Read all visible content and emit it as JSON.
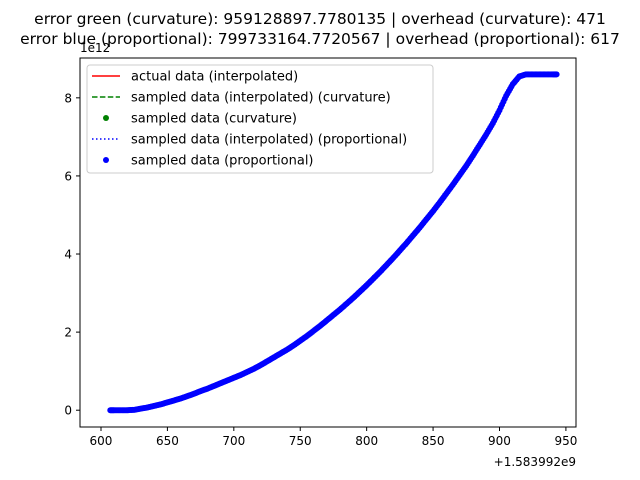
{
  "chart_data": {
    "type": "scatter",
    "title_lines": [
      "error green (curvature): 959128897.7780135 | overhead (curvature): 471",
      "error blue (proportional): 799733164.7720567 | overhead (proportional): 617"
    ],
    "xlabel": "",
    "ylabel": "",
    "x_offset_label": "+1.583992e9",
    "y_scale_label": "1e12",
    "xlim": [
      584.2,
      957.6
    ],
    "ylim": [
      -0.43,
      9.02
    ],
    "x_ticks": [
      600,
      650,
      700,
      750,
      800,
      850,
      900,
      950
    ],
    "x_tick_labels": [
      "600",
      "650",
      "700",
      "750",
      "800",
      "850",
      "900",
      "950"
    ],
    "y_ticks": [
      0,
      2,
      4,
      6,
      8
    ],
    "y_tick_labels": [
      "0",
      "2",
      "4",
      "6",
      "8"
    ],
    "grid": false,
    "legend_position": "top-left",
    "legend": [
      {
        "label": "actual data (interpolated)",
        "marker": "solid-line",
        "color": "#ff0000"
      },
      {
        "label": "sampled data (interpolated) (curvature)",
        "marker": "dashed-line",
        "color": "#008000"
      },
      {
        "label": "sampled data (curvature)",
        "marker": "dot",
        "color": "#008000"
      },
      {
        "label": "sampled data (interpolated) (proportional)",
        "marker": "dotted-line",
        "color": "#0000ff"
      },
      {
        "label": "sampled data (proportional)",
        "marker": "dot",
        "color": "#0000ff"
      }
    ],
    "series": [
      {
        "name": "sampled data (proportional)",
        "color": "#0000ff",
        "points": [
          [
            607,
            0.0
          ],
          [
            610,
            0.0
          ],
          [
            615,
            0.0
          ],
          [
            620,
            0.0
          ],
          [
            625,
            0.01
          ],
          [
            630,
            0.04
          ],
          [
            635,
            0.07
          ],
          [
            640,
            0.11
          ],
          [
            645,
            0.15
          ],
          [
            650,
            0.2
          ],
          [
            655,
            0.25
          ],
          [
            660,
            0.3
          ],
          [
            665,
            0.36
          ],
          [
            670,
            0.42
          ],
          [
            675,
            0.49
          ],
          [
            680,
            0.55
          ],
          [
            685,
            0.62
          ],
          [
            690,
            0.69
          ],
          [
            695,
            0.76
          ],
          [
            700,
            0.83
          ],
          [
            705,
            0.9
          ],
          [
            710,
            0.98
          ],
          [
            715,
            1.06
          ],
          [
            720,
            1.15
          ],
          [
            725,
            1.25
          ],
          [
            730,
            1.35
          ],
          [
            735,
            1.45
          ],
          [
            740,
            1.55
          ],
          [
            745,
            1.66
          ],
          [
            750,
            1.78
          ],
          [
            755,
            1.9
          ],
          [
            760,
            2.03
          ],
          [
            765,
            2.16
          ],
          [
            770,
            2.3
          ],
          [
            775,
            2.44
          ],
          [
            780,
            2.58
          ],
          [
            785,
            2.73
          ],
          [
            790,
            2.88
          ],
          [
            795,
            3.04
          ],
          [
            800,
            3.2
          ],
          [
            805,
            3.37
          ],
          [
            810,
            3.54
          ],
          [
            815,
            3.72
          ],
          [
            820,
            3.9
          ],
          [
            825,
            4.09
          ],
          [
            830,
            4.28
          ],
          [
            835,
            4.48
          ],
          [
            840,
            4.68
          ],
          [
            845,
            4.89
          ],
          [
            850,
            5.1
          ],
          [
            855,
            5.32
          ],
          [
            860,
            5.55
          ],
          [
            865,
            5.78
          ],
          [
            870,
            6.02
          ],
          [
            875,
            6.26
          ],
          [
            880,
            6.52
          ],
          [
            885,
            6.79
          ],
          [
            890,
            7.06
          ],
          [
            895,
            7.35
          ],
          [
            900,
            7.68
          ],
          [
            905,
            8.05
          ],
          [
            910,
            8.35
          ],
          [
            915,
            8.55
          ],
          [
            920,
            8.6
          ],
          [
            925,
            8.6
          ],
          [
            930,
            8.6
          ],
          [
            935,
            8.6
          ],
          [
            940,
            8.6
          ],
          [
            943,
            8.6
          ]
        ]
      }
    ]
  }
}
